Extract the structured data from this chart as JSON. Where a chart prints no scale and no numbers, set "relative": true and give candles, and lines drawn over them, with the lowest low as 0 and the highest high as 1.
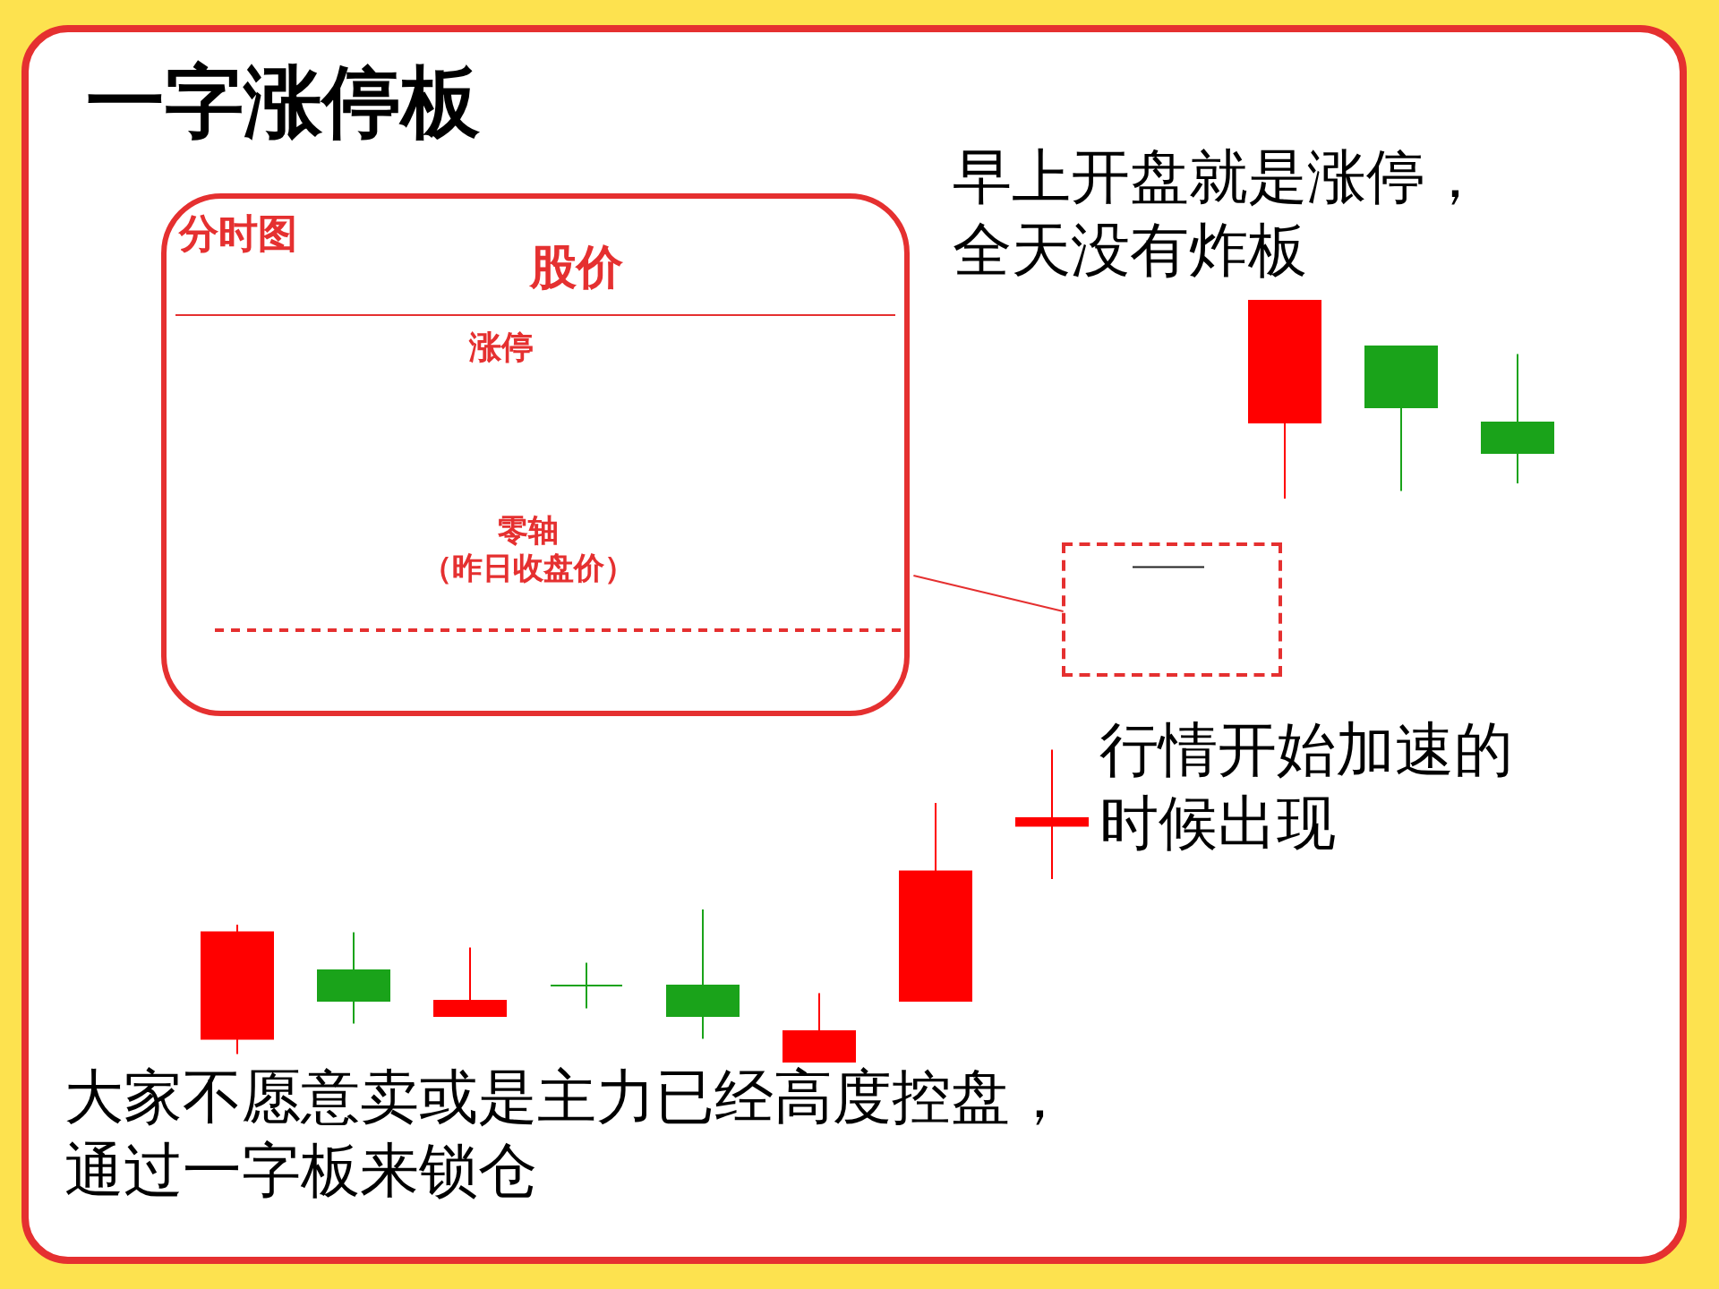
{
  "chart_data": {
    "type": "candlestick",
    "title": "一字涨停板",
    "relative": true,
    "categories": [
      null,
      null,
      null,
      null,
      null,
      null,
      null,
      null,
      null,
      null,
      null,
      null
    ],
    "ohlc": [
      [
        0.03,
        0.18,
        0.01,
        0.17
      ],
      [
        0.12,
        0.17,
        0.05,
        0.08
      ],
      [
        0.06,
        0.15,
        0.06,
        0.08
      ],
      [
        0.1,
        0.13,
        0.07,
        0.1
      ],
      [
        0.1,
        0.2,
        0.03,
        0.06
      ],
      [
        0.0,
        0.09,
        0.0,
        0.04
      ],
      [
        0.08,
        0.34,
        0.08,
        0.25
      ],
      [
        0.31,
        0.41,
        0.24,
        0.32
      ],
      [
        0.65,
        0.65,
        0.65,
        0.65
      ],
      [
        0.84,
        1.0,
        0.74,
        1.0
      ],
      [
        0.94,
        0.94,
        0.75,
        0.86
      ],
      [
        0.84,
        0.93,
        0.76,
        0.8
      ]
    ],
    "colors": [
      "#ff0000",
      "#1aa31a",
      "#ff0000",
      "#1aa31a",
      "#1aa31a",
      "#ff0000",
      "#ff0000",
      "#ff0000",
      "#222222",
      "#ff0000",
      "#1aa31a",
      "#1aa31a"
    ],
    "annotations": [
      "分时图",
      "股价",
      "涨停",
      "零轴（昨日收盘价）",
      "早上开盘就是涨停，全天没有炸板",
      "行情开始加速的时候出现",
      "大家不愿意卖或是主力已经高度控盘，通过一字板来锁仓"
    ]
  }
}
